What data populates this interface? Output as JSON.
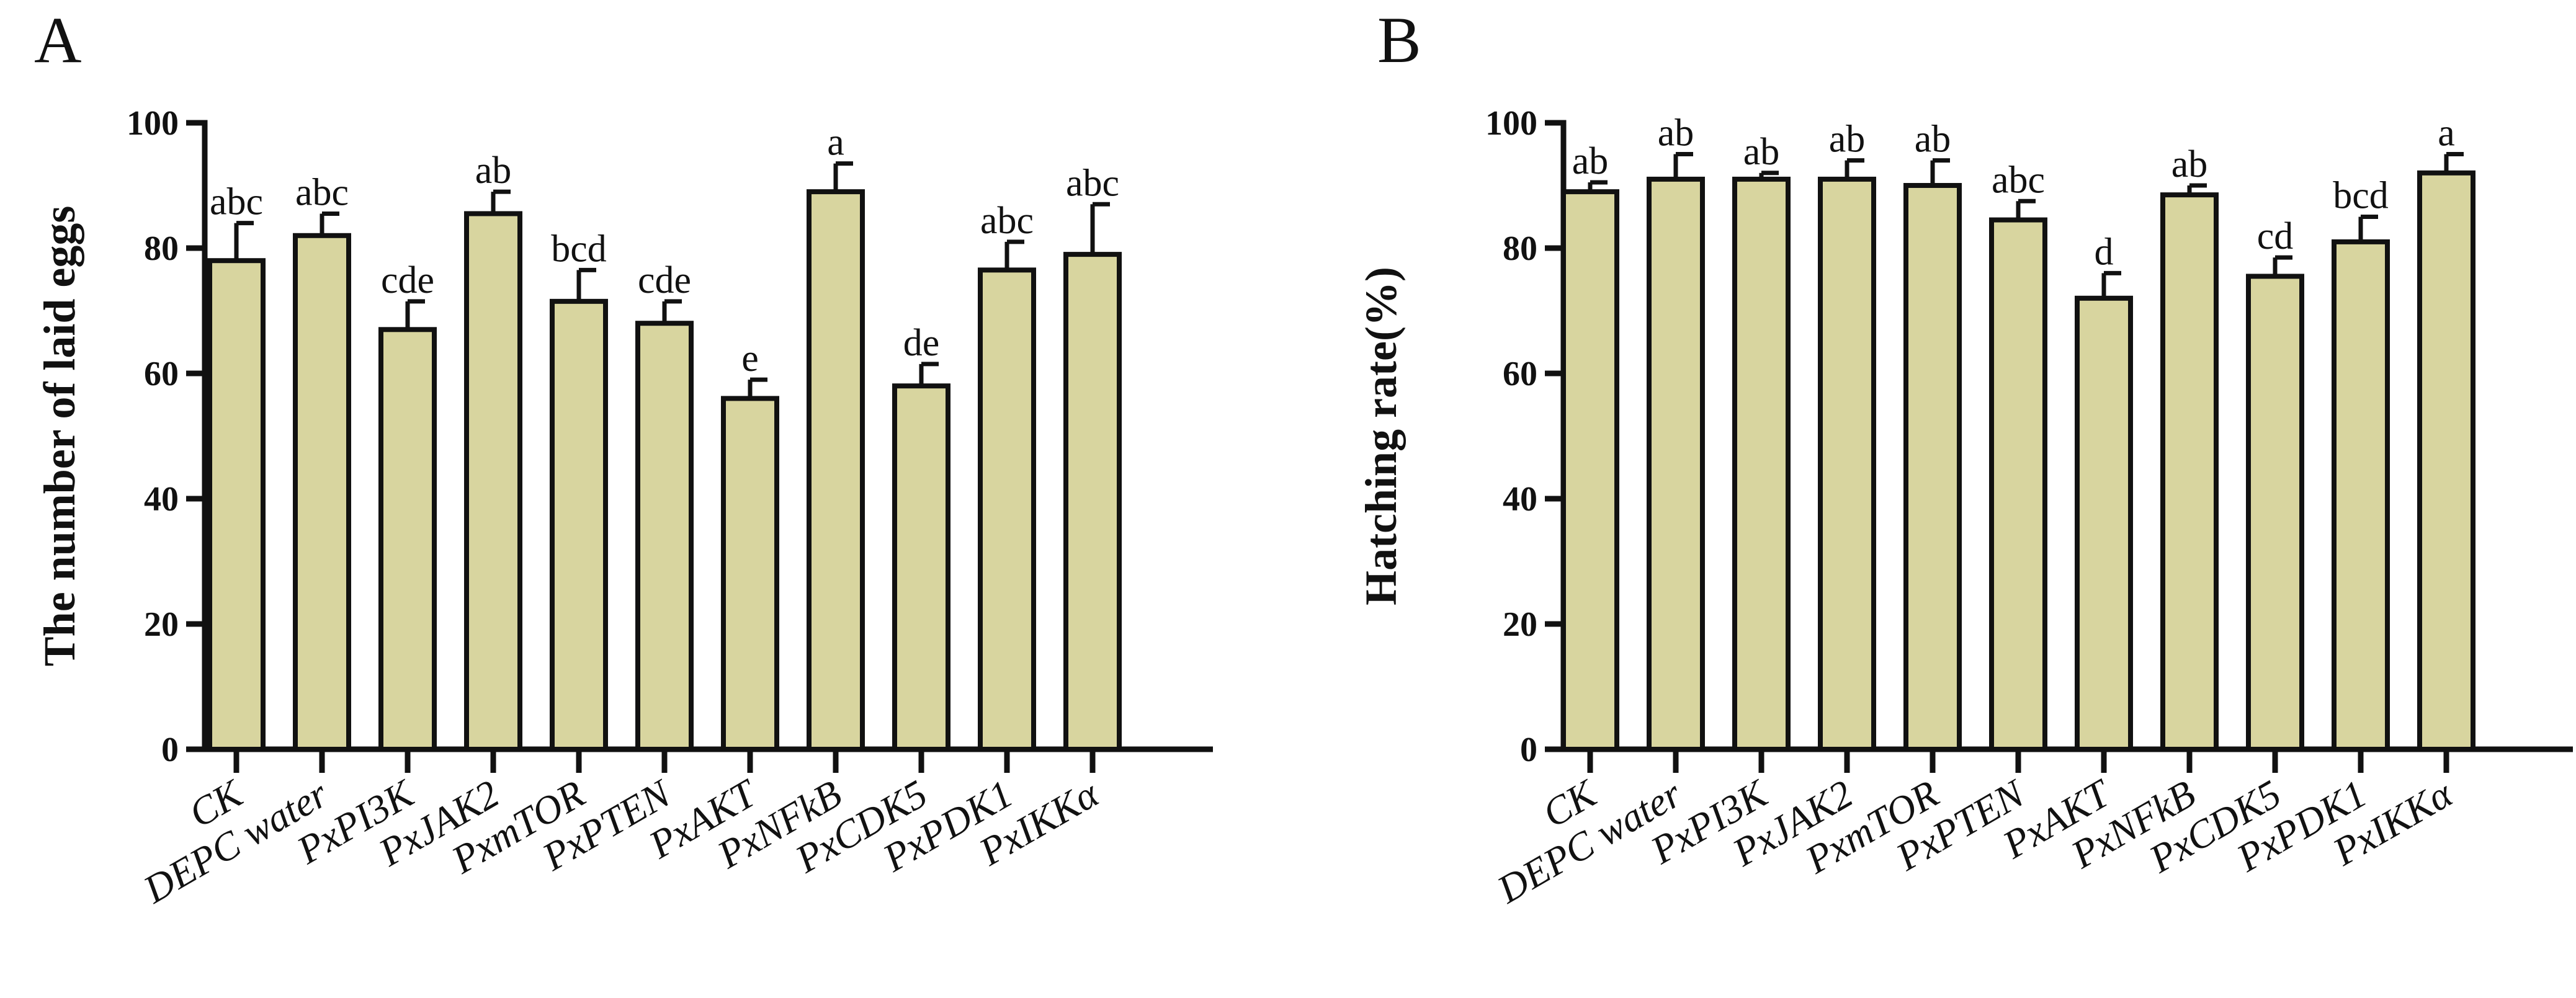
{
  "colors": {
    "bar_fill": "#d8d59f",
    "stroke": "#111111",
    "background": "#ffffff"
  },
  "chart_data": [
    {
      "type": "bar",
      "panel_label": "A",
      "title": "",
      "xlabel": "",
      "ylabel": "The number of laid eggs",
      "ylim": [
        0,
        100
      ],
      "yticks": [
        0,
        20,
        40,
        60,
        80,
        100
      ],
      "grid": false,
      "categories": [
        "CK",
        "DEPC water",
        "PxPI3K",
        "PxJAK2",
        "PxmTOR",
        "PxPTEN",
        "PxAKT",
        "PxNFkB",
        "PxCDK5",
        "PxPDK1",
        "PxIKKα"
      ],
      "values": [
        78,
        82,
        67,
        85.5,
        71.5,
        68,
        56,
        89,
        58,
        76.5,
        79
      ],
      "errors": [
        6,
        3.5,
        4.5,
        3.5,
        5,
        3.5,
        3,
        4.5,
        3.5,
        4.5,
        8
      ],
      "significance": [
        "abc",
        "abc",
        "cde",
        "ab",
        "bcd",
        "cde",
        "e",
        "a",
        "de",
        "abc",
        "abc"
      ]
    },
    {
      "type": "bar",
      "panel_label": "B",
      "title": "",
      "xlabel": "",
      "ylabel": "Hatching rate(%)",
      "ylim": [
        0,
        100
      ],
      "yticks": [
        0,
        20,
        40,
        60,
        80,
        100
      ],
      "grid": false,
      "categories": [
        "CK",
        "DEPC water",
        "PxPI3K",
        "PxJAK2",
        "PxmTOR",
        "PxPTEN",
        "PxAKT",
        "PxNFkB",
        "PxCDK5",
        "PxPDK1",
        "PxIKKα"
      ],
      "values": [
        89,
        91,
        91,
        91,
        90,
        84.5,
        72,
        88.5,
        75.5,
        81,
        92
      ],
      "errors": [
        1.5,
        4,
        1,
        3,
        4,
        3,
        4,
        1.5,
        3,
        4,
        3
      ],
      "significance": [
        "ab",
        "ab",
        "ab",
        "ab",
        "ab",
        "abc",
        "d",
        "ab",
        "cd",
        "bcd",
        "a"
      ]
    }
  ]
}
